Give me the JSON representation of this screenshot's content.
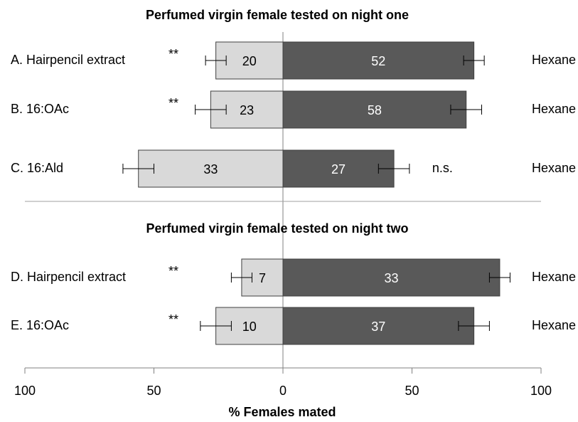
{
  "chart_data": {
    "type": "bar",
    "orientation": "horizontal",
    "xlabel": "% Females mated",
    "xlim": [
      -100,
      100
    ],
    "xticks": [
      {
        "value": -100,
        "label": "100"
      },
      {
        "value": -50,
        "label": "50"
      },
      0,
      50,
      100
    ],
    "panels": [
      {
        "title": "Perfumed virgin female tested on night one",
        "categories": [
          "A.  Hairpencil extract",
          "B.  16:OAc",
          "C.  16:Ald"
        ],
        "significance": [
          "**",
          "**",
          "n.s."
        ],
        "right_labels": [
          "Hexane",
          "Hexane",
          "Hexane"
        ],
        "series": [
          {
            "color": "#d9d9d9",
            "values": [
              -26,
              -28,
              -56
            ],
            "errors": [
              4,
              6,
              6
            ],
            "counts": [
              20,
              23,
              33
            ]
          },
          {
            "color": "#595959",
            "values": [
              74,
              71,
              43
            ],
            "errors": [
              4,
              6,
              6
            ],
            "counts": [
              52,
              58,
              27
            ]
          }
        ]
      },
      {
        "title": "Perfumed virgin female tested on night two",
        "categories": [
          "D.  Hairpencil extract",
          "E.  16:OAc"
        ],
        "significance": [
          "**",
          "**"
        ],
        "right_labels": [
          "Hexane",
          "Hexane"
        ],
        "series": [
          {
            "color": "#d9d9d9",
            "values": [
              -16,
              -26
            ],
            "errors": [
              4,
              6
            ],
            "counts": [
              7,
              10
            ]
          },
          {
            "color": "#595959",
            "values": [
              84,
              74
            ],
            "errors": [
              4,
              6
            ],
            "counts": [
              33,
              37
            ]
          }
        ]
      }
    ]
  }
}
